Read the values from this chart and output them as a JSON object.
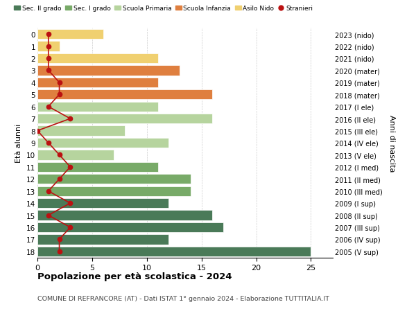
{
  "ages": [
    18,
    17,
    16,
    15,
    14,
    13,
    12,
    11,
    10,
    9,
    8,
    7,
    6,
    5,
    4,
    3,
    2,
    1,
    0
  ],
  "years": [
    "2005 (V sup)",
    "2006 (IV sup)",
    "2007 (III sup)",
    "2008 (II sup)",
    "2009 (I sup)",
    "2010 (III med)",
    "2011 (II med)",
    "2012 (I med)",
    "2013 (V ele)",
    "2014 (IV ele)",
    "2015 (III ele)",
    "2016 (II ele)",
    "2017 (I ele)",
    "2018 (mater)",
    "2019 (mater)",
    "2020 (mater)",
    "2021 (nido)",
    "2022 (nido)",
    "2023 (nido)"
  ],
  "values": [
    25,
    12,
    17,
    16,
    12,
    14,
    14,
    11,
    7,
    12,
    8,
    16,
    11,
    16,
    11,
    13,
    11,
    2,
    6
  ],
  "stranieri": [
    2,
    2,
    3,
    1,
    3,
    1,
    2,
    3,
    2,
    1,
    0,
    3,
    1,
    2,
    2,
    1,
    1,
    1,
    1
  ],
  "bar_colors": [
    "#4a7a58",
    "#4a7a58",
    "#4a7a58",
    "#4a7a58",
    "#4a7a58",
    "#78aa68",
    "#78aa68",
    "#78aa68",
    "#b6d49e",
    "#b6d49e",
    "#b6d49e",
    "#b6d49e",
    "#b6d49e",
    "#df7f3f",
    "#df7f3f",
    "#df7f3f",
    "#f0d070",
    "#f0d070",
    "#f0d070"
  ],
  "stranieri_color": "#bb1111",
  "legend_labels": [
    "Sec. II grado",
    "Sec. I grado",
    "Scuola Primaria",
    "Scuola Infanzia",
    "Asilo Nido",
    "Stranieri"
  ],
  "legend_colors": [
    "#4a7a58",
    "#78aa68",
    "#b6d49e",
    "#df7f3f",
    "#f0d070",
    "#bb1111"
  ],
  "title": "Popolazione per età scolastica - 2024",
  "subtitle": "COMUNE DI REFRANCORE (AT) - Dati ISTAT 1° gennaio 2024 - Elaborazione TUTTITALIA.IT",
  "ylabel_left": "Età alunni",
  "ylabel_right": "Anni di nascita",
  "xlim_max": 27,
  "xticks": [
    0,
    5,
    10,
    15,
    20,
    25
  ],
  "background": "#ffffff",
  "grid_color": "#cccccc"
}
